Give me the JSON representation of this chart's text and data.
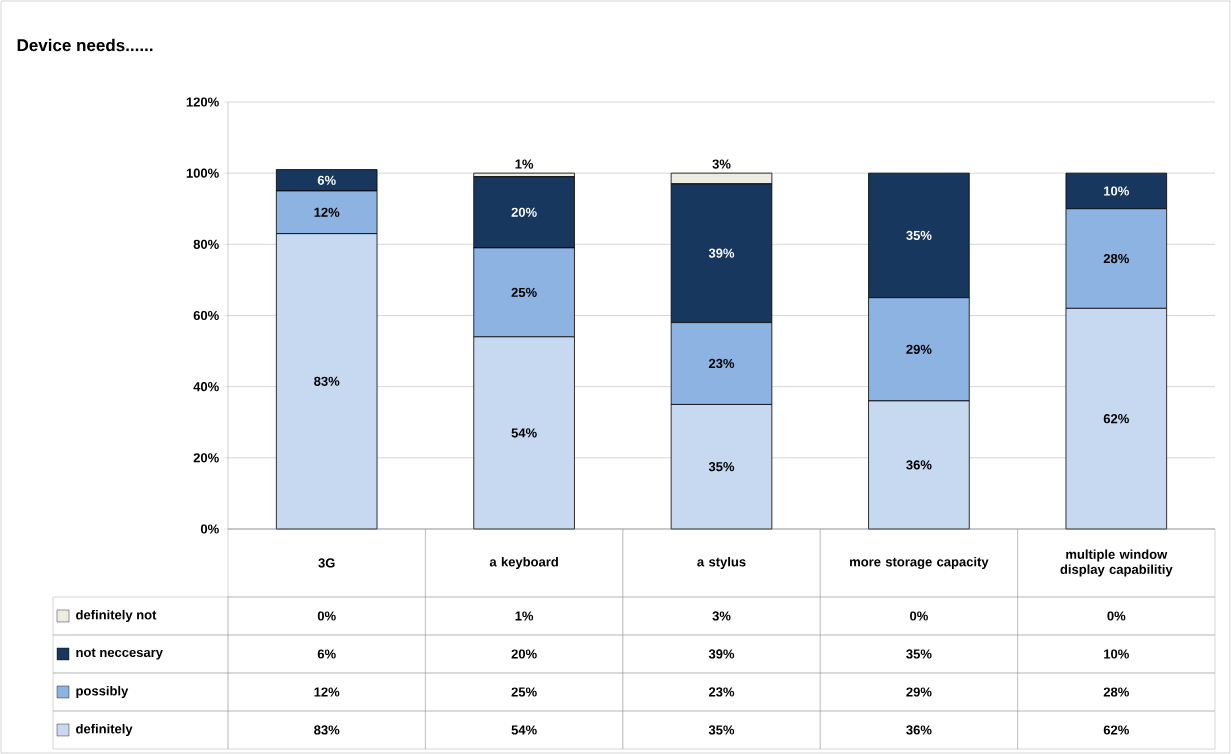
{
  "chart_data": {
    "type": "bar",
    "stacked": true,
    "title": "Device needs......",
    "categories": [
      "3G",
      "a keyboard",
      "a stylus",
      "more storage capacity",
      "multiple window display capabilitiy"
    ],
    "series": [
      {
        "name": "definitely",
        "color": "#c6d9f1",
        "values": [
          83,
          54,
          35,
          36,
          62
        ],
        "value_labels": [
          "83%",
          "54%",
          "35%",
          "36%",
          "62%"
        ]
      },
      {
        "name": "possibly",
        "color": "#8db3e2",
        "values": [
          12,
          25,
          23,
          29,
          28
        ],
        "value_labels": [
          "12%",
          "25%",
          "23%",
          "29%",
          "28%"
        ]
      },
      {
        "name": "not neccesary",
        "color": "#17375e",
        "values": [
          6,
          20,
          39,
          35,
          10
        ],
        "value_labels": [
          "6%",
          "20%",
          "39%",
          "35%",
          "10%"
        ]
      },
      {
        "name": "definitely not",
        "color": "#eeece1",
        "values": [
          0,
          1,
          3,
          0,
          0
        ],
        "value_labels": [
          "0%",
          "1%",
          "3%",
          "0%",
          "0%"
        ]
      }
    ],
    "ylim": [
      0,
      120
    ],
    "yticks": [
      {
        "value": 0,
        "label": "0%"
      },
      {
        "value": 20,
        "label": "20%"
      },
      {
        "value": 40,
        "label": "40%"
      },
      {
        "value": 60,
        "label": "60%"
      },
      {
        "value": 80,
        "label": "80%"
      },
      {
        "value": 100,
        "label": "100%"
      },
      {
        "value": 120,
        "label": "120%"
      }
    ],
    "grid": "y",
    "legend": "bottom"
  }
}
